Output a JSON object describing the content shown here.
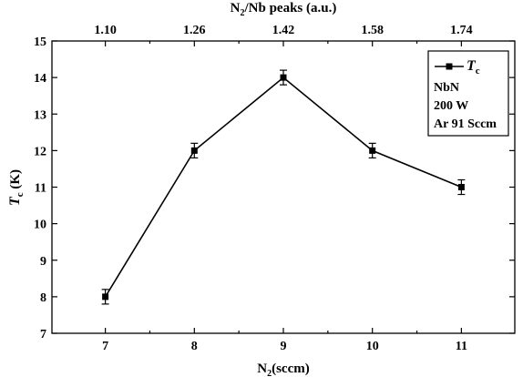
{
  "chart_data": {
    "type": "line",
    "x": [
      7,
      8,
      9,
      10,
      11
    ],
    "series": [
      {
        "name": "T",
        "name_subscript": "c",
        "values": [
          8,
          12,
          14,
          12,
          11
        ],
        "errors": [
          0.2,
          0.2,
          0.2,
          0.2,
          0.2
        ],
        "color": "#000000",
        "marker": "square"
      }
    ],
    "xlabel": "N",
    "xlabel_subscript": "2",
    "xlabel_suffix": "(sccm)",
    "ylabel": "T",
    "ylabel_subscript": "c",
    "ylabel_suffix": " (K)",
    "x2label": "N",
    "x2label_subscript": "2",
    "x2label_suffix": "/Nb peaks (a.u.)",
    "xlim": [
      6.4,
      11.6
    ],
    "ylim": [
      7,
      15
    ],
    "xticks": [
      "7",
      "8",
      "9",
      "10",
      "11"
    ],
    "yticks": [
      "7",
      "8",
      "9",
      "10",
      "11",
      "12",
      "13",
      "14",
      "15"
    ],
    "x2ticks": [
      "1.10",
      "1.26",
      "1.42",
      "1.58",
      "1.74"
    ],
    "grid": false,
    "legend_position": "top-right",
    "legend_lines": [
      "NbN",
      "200 W",
      "Ar 91 Sccm"
    ]
  }
}
